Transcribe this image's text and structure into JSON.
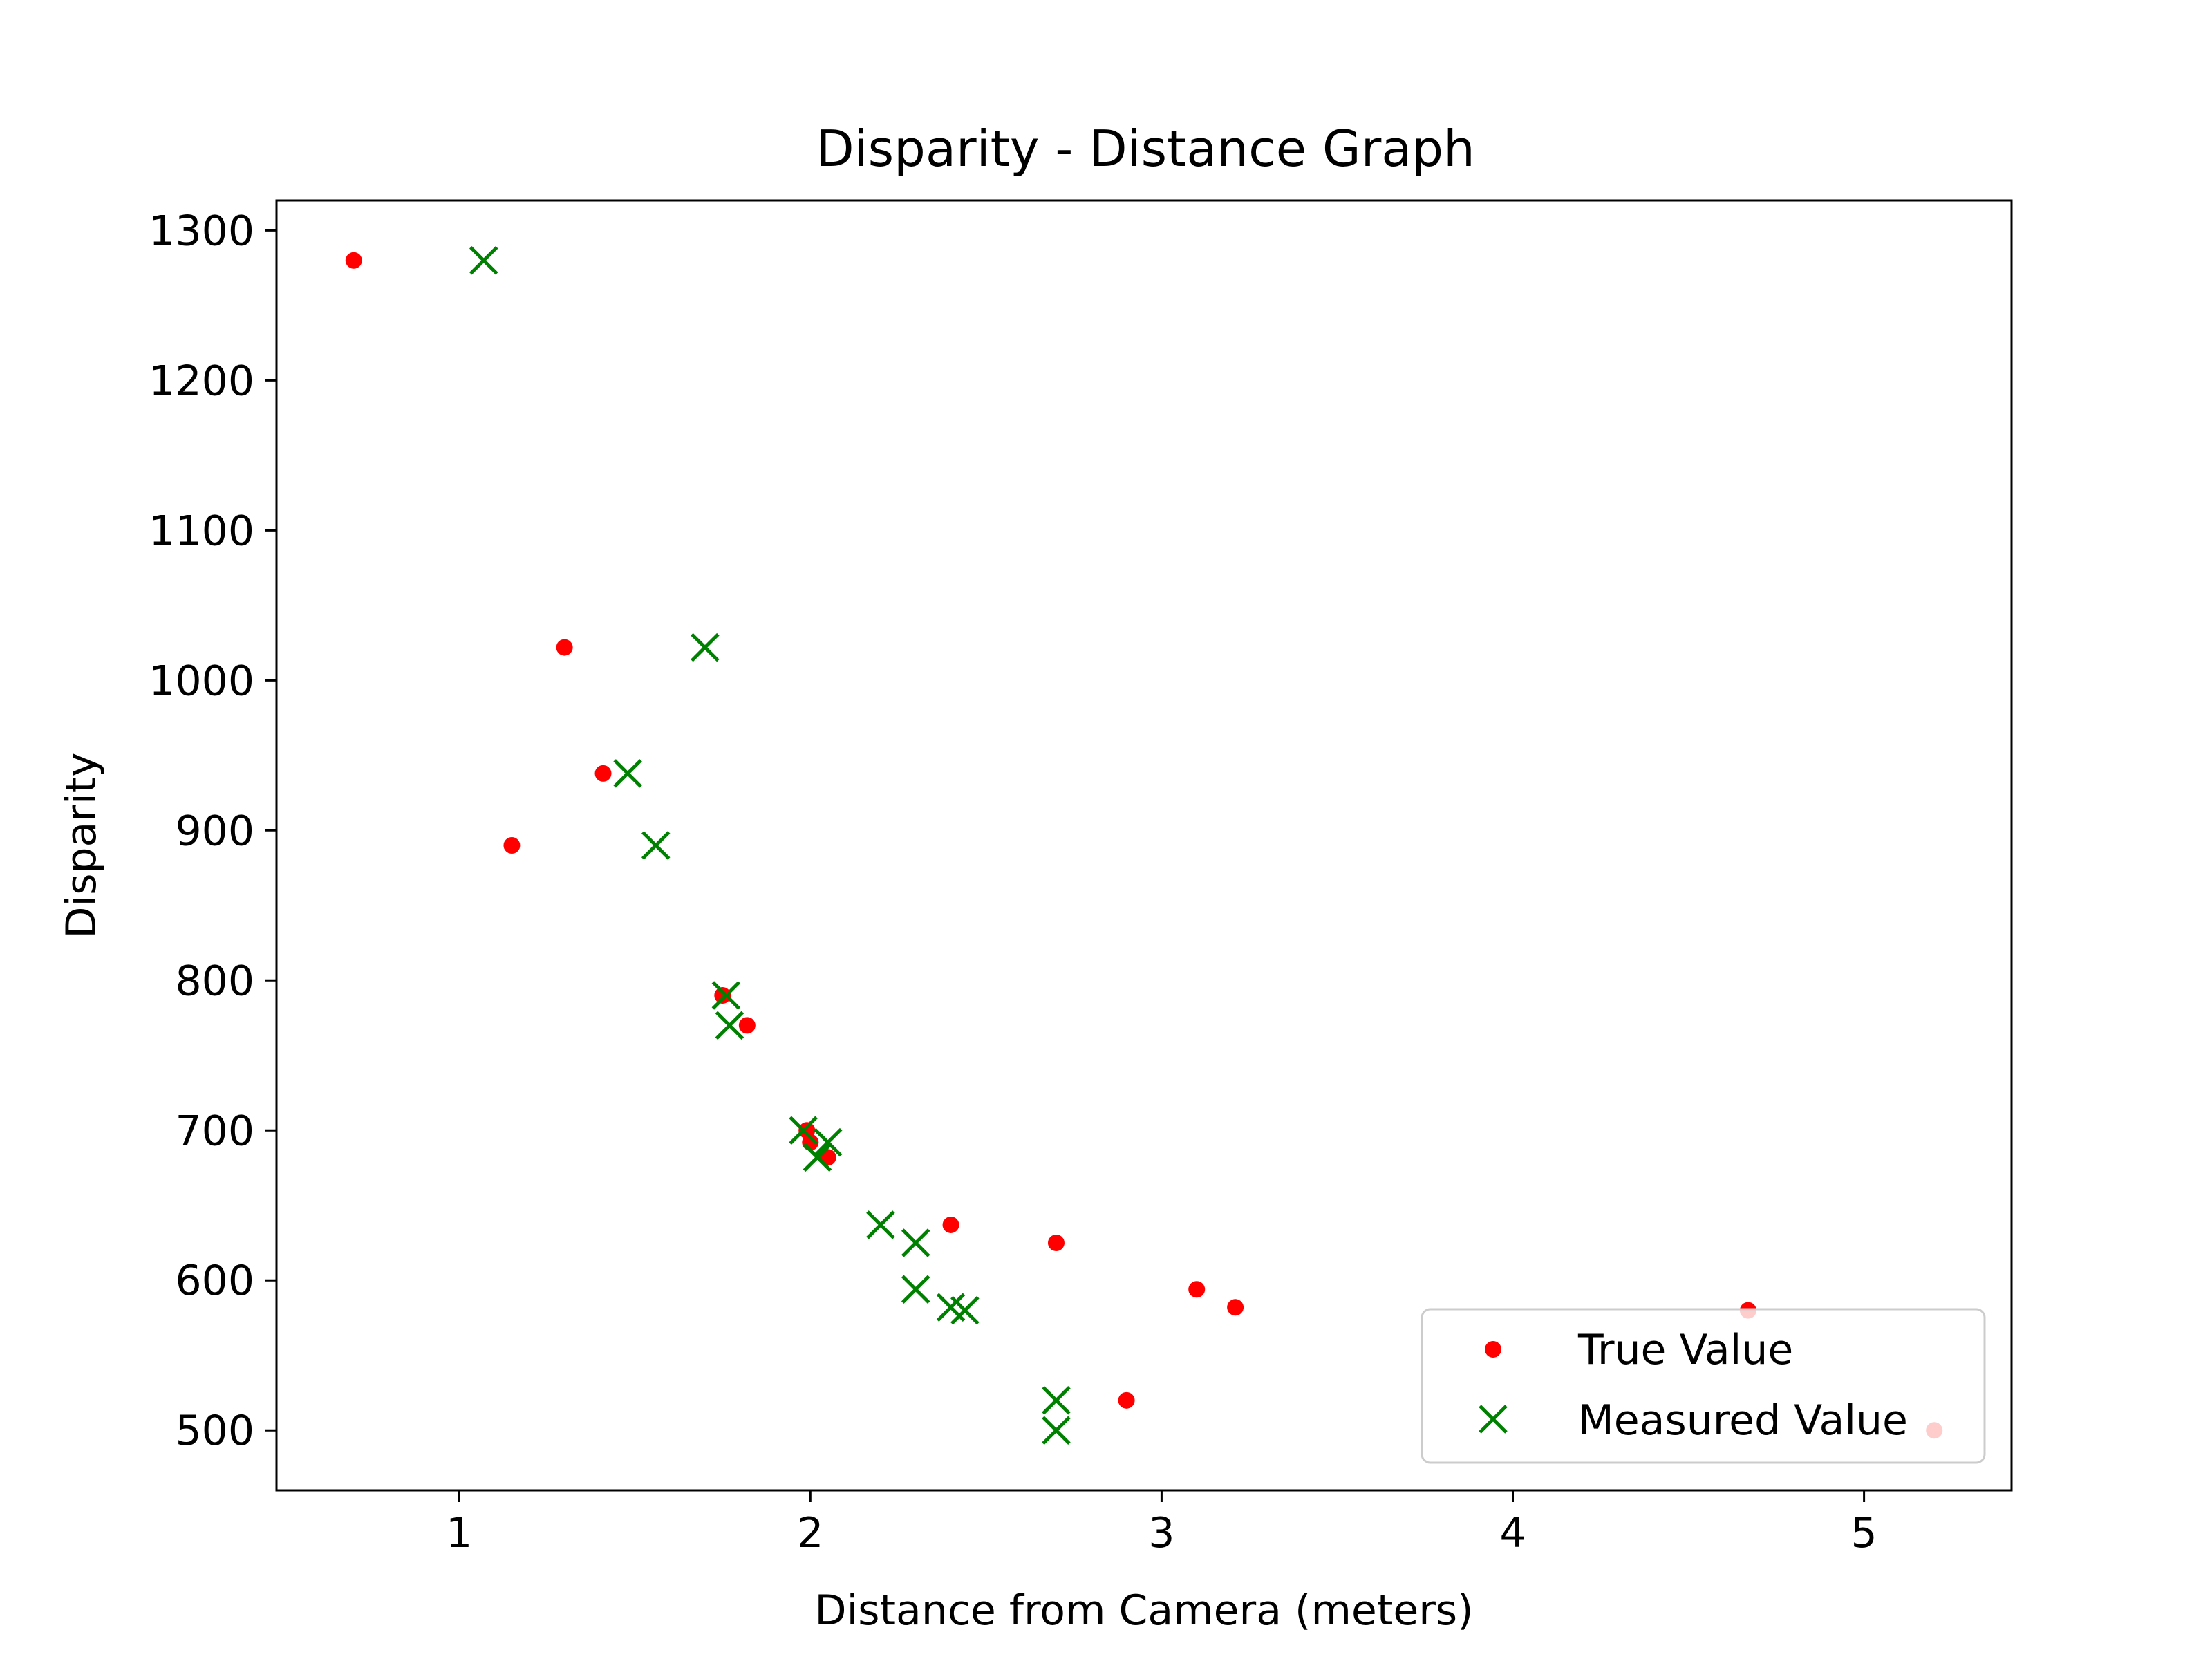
{
  "chart_data": {
    "type": "scatter",
    "title": "Disparity - Distance Graph",
    "xlabel": "Distance from Camera (meters)",
    "ylabel": "Disparity",
    "xlim": [
      0.48,
      5.42
    ],
    "ylim": [
      460,
      1320
    ],
    "xticks": [
      1,
      2,
      3,
      4,
      5
    ],
    "yticks": [
      500,
      600,
      700,
      800,
      900,
      1000,
      1100,
      1200,
      1300
    ],
    "grid": false,
    "legend_position": "lower right",
    "series": [
      {
        "name": "True Value",
        "marker": "dot",
        "color": "#ff0000",
        "points": [
          {
            "x": 0.7,
            "y": 1280
          },
          {
            "x": 1.15,
            "y": 890
          },
          {
            "x": 1.3,
            "y": 1022
          },
          {
            "x": 1.41,
            "y": 938
          },
          {
            "x": 1.75,
            "y": 790
          },
          {
            "x": 1.82,
            "y": 770
          },
          {
            "x": 1.99,
            "y": 700
          },
          {
            "x": 2.0,
            "y": 692
          },
          {
            "x": 2.05,
            "y": 682
          },
          {
            "x": 2.4,
            "y": 637
          },
          {
            "x": 2.7,
            "y": 625
          },
          {
            "x": 2.9,
            "y": 520
          },
          {
            "x": 3.1,
            "y": 594
          },
          {
            "x": 3.21,
            "y": 582
          },
          {
            "x": 4.67,
            "y": 580
          },
          {
            "x": 5.2,
            "y": 500
          }
        ]
      },
      {
        "name": "Measured Value",
        "marker": "x",
        "color": "#008000",
        "points": [
          {
            "x": 1.07,
            "y": 1280
          },
          {
            "x": 1.48,
            "y": 938
          },
          {
            "x": 1.56,
            "y": 890
          },
          {
            "x": 1.7,
            "y": 1022
          },
          {
            "x": 1.76,
            "y": 790
          },
          {
            "x": 1.77,
            "y": 770
          },
          {
            "x": 1.98,
            "y": 700
          },
          {
            "x": 2.02,
            "y": 682
          },
          {
            "x": 2.05,
            "y": 692
          },
          {
            "x": 2.2,
            "y": 637
          },
          {
            "x": 2.3,
            "y": 625
          },
          {
            "x": 2.3,
            "y": 594
          },
          {
            "x": 2.4,
            "y": 582
          },
          {
            "x": 2.44,
            "y": 580
          },
          {
            "x": 2.7,
            "y": 520
          },
          {
            "x": 2.7,
            "y": 500
          }
        ]
      }
    ]
  }
}
